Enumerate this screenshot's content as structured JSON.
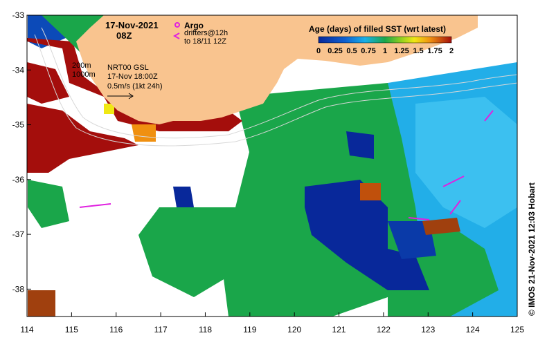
{
  "map": {
    "date_line": "17-Nov-2021",
    "time_line": "08Z",
    "isobaths": [
      "200m",
      "1000m"
    ],
    "current_source": "NRT00 GSL",
    "current_time": "17-Nov 18:00Z",
    "scale_label": "0.5m/s (1kt 24h)",
    "legend_argo": "Argo",
    "legend_drifters_1": "drifters@12h",
    "legend_drifters_2": "to 18/11 12Z",
    "colorbar_title": "Age (days) of filled SST (wrt latest)",
    "colorbar_ticks": [
      "0",
      "0.25",
      "0.5",
      "0.75",
      "1",
      "1.25",
      "1.5",
      "1.75",
      "2"
    ],
    "credit": "© IMOS 21-Nov-2021 12:03 Hobart",
    "x_ticks": [
      "114",
      "115",
      "116",
      "117",
      "118",
      "119",
      "120",
      "121",
      "122",
      "123",
      "124",
      "125"
    ],
    "y_ticks": [
      "-33",
      "-34",
      "-35",
      "-36",
      "-37",
      "-38"
    ],
    "extent": {
      "lon": [
        114,
        125
      ],
      "lat": [
        -38.5,
        -33
      ]
    },
    "colors": {
      "land": "#f9c48f",
      "age_0": "#08289a",
      "age_0_5": "#1e96e6",
      "age_1": "#1aa64a",
      "age_1_5": "#f0e814",
      "age_2": "#a40e0c",
      "argo": "#e020e0",
      "drifter": "#e020e0"
    }
  }
}
